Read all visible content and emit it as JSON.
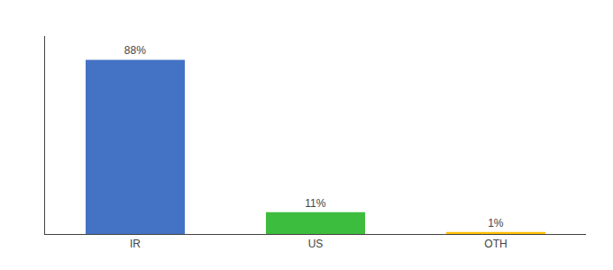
{
  "chart_data": {
    "type": "bar",
    "categories": [
      "IR",
      "US",
      "OTH"
    ],
    "values": [
      88,
      11,
      1
    ],
    "value_labels": [
      "88%",
      "11%",
      "1%"
    ],
    "data_labels": true,
    "colors": [
      "#4472C4",
      "#3DBD3D",
      "#FFC000"
    ],
    "ylim": [
      0,
      100
    ],
    "tick_labels": "x",
    "grid": false
  }
}
